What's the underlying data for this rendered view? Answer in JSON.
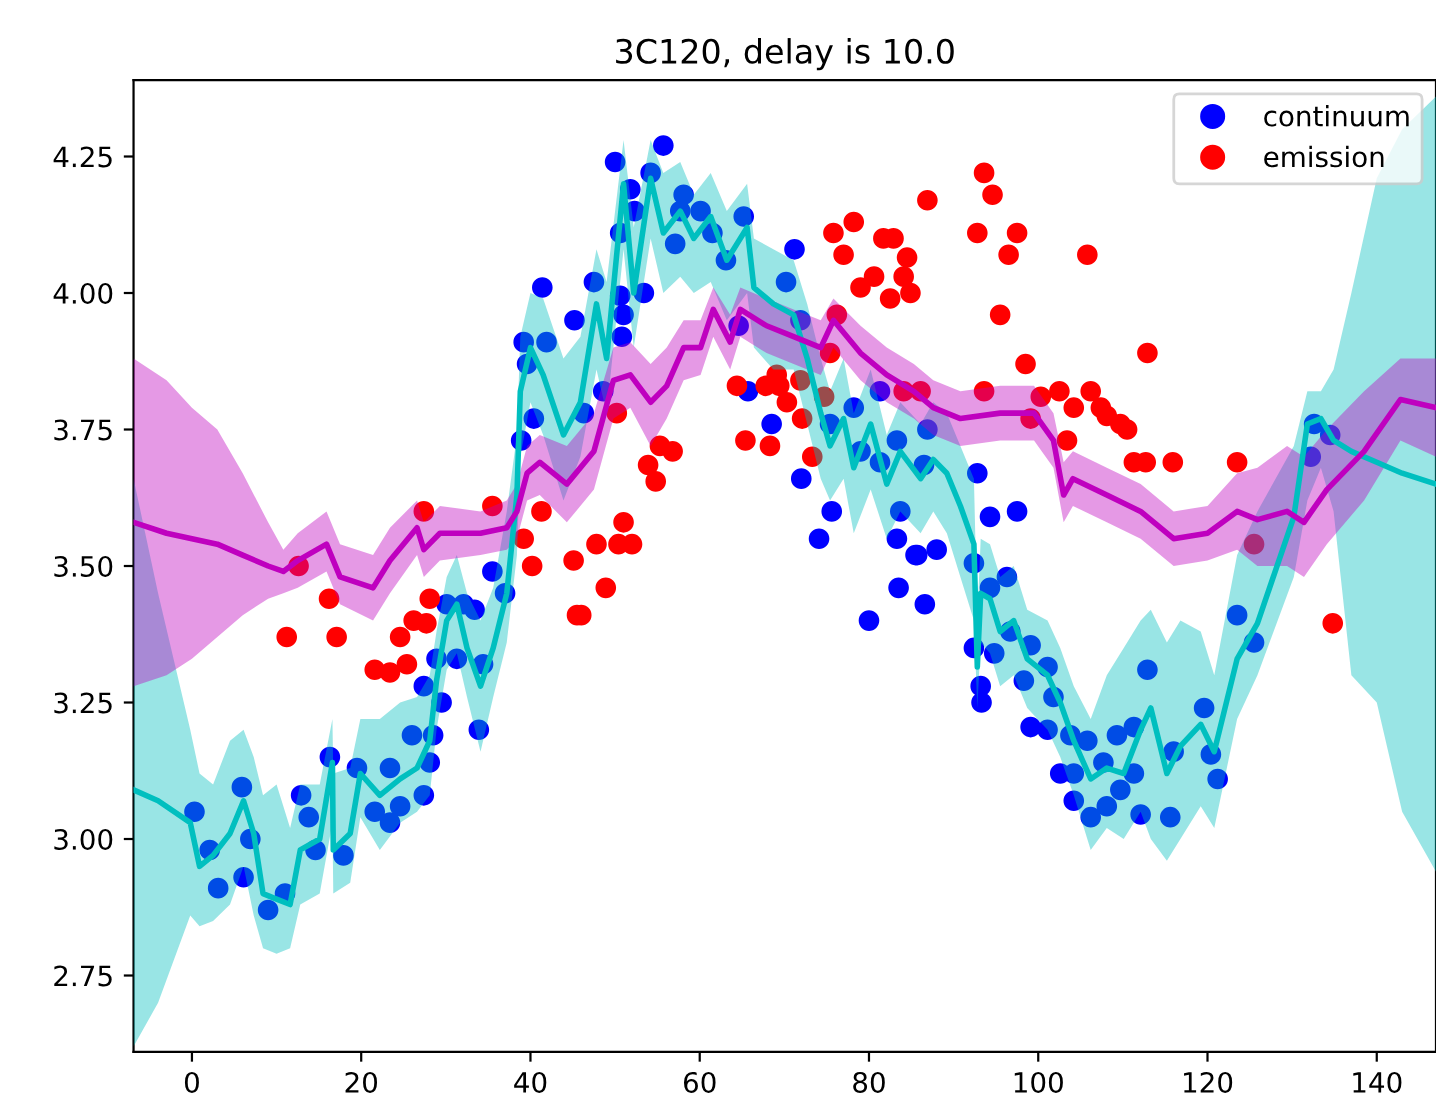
{
  "chart_data": {
    "type": "scatter",
    "title": "3C120, delay is 10.0",
    "xlim": [
      -6.9,
      147
    ],
    "ylim": [
      2.61,
      4.39
    ],
    "xticks": [
      0,
      20,
      40,
      60,
      80,
      100,
      120,
      140
    ],
    "yticks": [
      {
        "value": 2.75,
        "label": "2.75"
      },
      {
        "value": 3.0,
        "label": "3.00"
      },
      {
        "value": 3.25,
        "label": "3.25"
      },
      {
        "value": 3.5,
        "label": "3.50"
      },
      {
        "value": 3.75,
        "label": "3.75"
      },
      {
        "value": 4.0,
        "label": "4.00"
      },
      {
        "value": 4.25,
        "label": "4.25"
      }
    ],
    "legend": "top right",
    "grid": false,
    "series": [
      {
        "name": "continuum",
        "marker": "circle",
        "color": "#0000ff",
        "x": [
          0.3,
          2.1,
          3.1,
          5.9,
          6.9,
          6.1,
          9.0,
          11.0,
          12.9,
          13.8,
          14.6,
          16.3,
          17.9,
          19.5,
          21.6,
          23.4,
          23.4,
          24.6,
          26.0,
          27.4,
          28.1,
          28.5,
          29.5,
          27.4,
          28.9,
          31.3,
          30.1,
          32.1,
          33.4,
          34.4,
          33.9,
          35.5,
          37.0,
          39.2,
          39.6,
          41.9,
          41.4,
          38.9,
          40.4,
          45.2,
          46.3,
          47.5,
          48.6,
          50.6,
          51.0,
          50.8,
          50.0,
          51.8,
          54.2,
          55.7,
          50.6,
          53.4,
          52.3,
          57.7,
          58.1,
          60.1,
          61.5,
          57.1,
          63.1,
          65.2,
          71.2,
          70.2,
          71.9,
          64.6,
          65.7,
          68.5,
          72.0,
          74.1,
          75.6,
          80.0,
          83.5,
          86.6,
          78.2,
          75.4,
          79.0,
          81.3,
          81.3,
          83.7,
          85.5,
          86.9,
          83.3,
          86.5,
          92.8,
          94.3,
          97.5,
          83.3,
          85.7,
          88.0,
          92.4,
          96.3,
          92.4,
          94.8,
          112.9,
          132.6,
          134.5,
          132.2,
          123.5,
          125.5,
          94.3,
          93.2,
          93.3,
          99.1,
          98.3,
          101.1,
          101.8,
          96.7,
          99.1,
          101.1,
          103.8,
          105.8,
          102.6,
          104.2,
          104.2,
          106.2,
          108.1,
          107.7,
          109.7,
          111.3,
          109.3,
          111.3,
          112.1,
          115.6,
          116.0,
          119.6,
          120.4,
          121.2
        ],
        "values": [
          3.05,
          2.98,
          2.91,
          3.095,
          3.0,
          2.93,
          2.87,
          2.9,
          3.08,
          3.04,
          2.98,
          3.15,
          2.97,
          3.13,
          3.05,
          3.03,
          3.13,
          3.06,
          3.19,
          3.08,
          3.14,
          3.19,
          3.25,
          3.28,
          3.33,
          3.33,
          3.43,
          3.43,
          3.42,
          3.32,
          3.2,
          3.49,
          3.45,
          3.91,
          3.87,
          3.91,
          4.01,
          3.73,
          3.77,
          3.95,
          3.78,
          4.02,
          3.82,
          3.995,
          3.96,
          3.92,
          4.24,
          4.19,
          4.22,
          4.27,
          4.11,
          4.0,
          4.15,
          4.15,
          4.18,
          4.15,
          4.11,
          4.09,
          4.06,
          4.14,
          4.08,
          4.02,
          3.95,
          3.94,
          3.82,
          3.76,
          3.66,
          3.55,
          3.6,
          3.4,
          3.46,
          3.43,
          3.79,
          3.76,
          3.71,
          3.69,
          3.82,
          3.6,
          3.52,
          3.75,
          3.73,
          3.685,
          3.67,
          3.59,
          3.6,
          3.55,
          3.52,
          3.53,
          3.505,
          3.48,
          3.35,
          3.34,
          3.31,
          3.76,
          3.74,
          3.7,
          3.41,
          3.36,
          3.46,
          3.28,
          3.25,
          3.355,
          3.29,
          3.315,
          3.26,
          3.38,
          3.205,
          3.2,
          3.19,
          3.18,
          3.12,
          3.12,
          3.07,
          3.04,
          3.06,
          3.14,
          3.09,
          3.12,
          3.19,
          3.205,
          3.045,
          3.04,
          3.16,
          3.24,
          3.155,
          3.11
        ]
      },
      {
        "name": "emission",
        "marker": "circle",
        "color": "#ff0000",
        "x": [
          12.6,
          11.2,
          16.2,
          17.1,
          21.6,
          23.4,
          25.4,
          24.6,
          26.2,
          27.7,
          28.1,
          27.4,
          35.5,
          39.2,
          40.2,
          41.3,
          45.1,
          45.5,
          47.8,
          48.9,
          46.0,
          51.0,
          50.4,
          52.0,
          50.2,
          53.9,
          55.3,
          56.8,
          54.8,
          64.4,
          65.4,
          68.3,
          67.8,
          69.1,
          69.4,
          70.3,
          72.1,
          73.3,
          74.7,
          75.4,
          76.2,
          75.8,
          77.0,
          78.2,
          79.0,
          80.6,
          81.7,
          82.9,
          84.5,
          84.1,
          84.9,
          82.5,
          86.9,
          71.9,
          84.1,
          86.1,
          93.6,
          94.6,
          92.8,
          97.5,
          96.5,
          105.8,
          95.5,
          112.9,
          98.5,
          93.6,
          99.1,
          100.3,
          102.5,
          104.2,
          106.2,
          107.4,
          108.1,
          109.7,
          110.5,
          103.4,
          111.3,
          112.7,
          115.9,
          123.5,
          125.5,
          134.8
        ],
        "values": [
          3.5,
          3.37,
          3.44,
          3.37,
          3.31,
          3.305,
          3.32,
          3.37,
          3.4,
          3.395,
          3.44,
          3.6,
          3.61,
          3.55,
          3.5,
          3.6,
          3.51,
          3.41,
          3.54,
          3.46,
          3.41,
          3.58,
          3.54,
          3.54,
          3.78,
          3.685,
          3.72,
          3.71,
          3.655,
          3.83,
          3.73,
          3.72,
          3.83,
          3.85,
          3.83,
          3.8,
          3.77,
          3.7,
          3.81,
          3.89,
          3.96,
          4.11,
          4.07,
          4.13,
          4.01,
          4.03,
          4.1,
          4.1,
          4.065,
          4.03,
          4.0,
          3.99,
          4.17,
          3.84,
          3.82,
          3.82,
          4.22,
          4.18,
          4.11,
          4.11,
          4.07,
          4.07,
          3.96,
          3.89,
          3.87,
          3.82,
          3.77,
          3.81,
          3.82,
          3.79,
          3.82,
          3.79,
          3.775,
          3.76,
          3.75,
          3.73,
          3.69,
          3.69,
          3.69,
          3.69,
          3.54,
          3.395
        ]
      },
      {
        "type": "line",
        "marker": "none",
        "color": "#00bfbf",
        "x": [
          -6.9,
          -4,
          -0.2,
          0.9,
          2.5,
          4.5,
          6.1,
          7.3,
          8.4,
          10,
          11.6,
          12.8,
          15.1,
          16.6,
          16.7,
          18.7,
          19.9,
          22.2,
          24.6,
          26.6,
          28.1,
          28.9,
          30.1,
          31.3,
          32.5,
          34.1,
          35.6,
          37.2,
          38.4,
          38.8,
          40.0,
          41.5,
          43.9,
          45.9,
          47.8,
          49.0,
          51.0,
          52.2,
          54.2,
          55.7,
          57.7,
          59.3,
          61.3,
          63.2,
          65.6,
          66.4,
          68.7,
          71.1,
          72.7,
          74.3,
          75.4,
          77.0,
          78.2,
          80.2,
          82.1,
          83.7,
          86.1,
          87.6,
          89.2,
          90.8,
          92.4,
          92.8,
          93.2,
          94.3,
          95.5,
          97.1,
          98.7,
          101.1,
          102.6,
          104.2,
          106.2,
          108.1,
          110.1,
          112.1,
          113.3,
          115.2,
          116.8,
          119.2,
          120.8,
          123.5,
          125.9,
          130.2,
          131.8,
          133.4,
          134.9,
          137,
          140,
          143,
          147
        ],
        "values": [
          3.09,
          3.07,
          3.03,
          2.95,
          2.97,
          3.01,
          3.07,
          3.01,
          2.9,
          2.89,
          2.88,
          2.98,
          3.0,
          3.14,
          2.98,
          3.01,
          3.12,
          3.08,
          3.11,
          3.13,
          3.18,
          3.29,
          3.4,
          3.43,
          3.35,
          3.28,
          3.35,
          3.45,
          3.63,
          3.82,
          3.9,
          3.85,
          3.74,
          3.8,
          3.98,
          3.88,
          4.2,
          4.0,
          4.21,
          4.11,
          4.15,
          4.1,
          4.14,
          4.06,
          4.12,
          4.01,
          3.98,
          3.96,
          3.88,
          3.78,
          3.72,
          3.77,
          3.68,
          3.76,
          3.65,
          3.71,
          3.66,
          3.695,
          3.67,
          3.61,
          3.54,
          3.315,
          3.45,
          3.44,
          3.38,
          3.4,
          3.33,
          3.3,
          3.25,
          3.18,
          3.11,
          3.13,
          3.12,
          3.2,
          3.24,
          3.12,
          3.17,
          3.21,
          3.16,
          3.33,
          3.395,
          3.59,
          3.76,
          3.77,
          3.73,
          3.71,
          3.69,
          3.67,
          3.65
        ],
        "lower": [
          2.62,
          2.7,
          2.86,
          2.84,
          2.85,
          2.88,
          2.95,
          2.86,
          2.8,
          2.79,
          2.8,
          2.88,
          2.9,
          3.03,
          2.9,
          2.92,
          3.04,
          2.98,
          3.03,
          3.05,
          3.08,
          3.2,
          3.31,
          3.34,
          3.26,
          3.16,
          3.26,
          3.36,
          3.52,
          3.7,
          3.8,
          3.74,
          3.62,
          3.7,
          3.86,
          3.78,
          4.08,
          3.9,
          4.1,
          4.0,
          4.03,
          4.0,
          4.02,
          3.95,
          4.0,
          3.9,
          3.86,
          3.86,
          3.76,
          3.66,
          3.62,
          3.66,
          3.56,
          3.64,
          3.55,
          3.6,
          3.56,
          3.6,
          3.56,
          3.48,
          3.4,
          3.24,
          3.36,
          3.34,
          3.28,
          3.3,
          3.24,
          3.2,
          3.15,
          3.08,
          2.98,
          3.02,
          3.0,
          3.05,
          3.0,
          2.96,
          3.0,
          3.06,
          3.02,
          3.22,
          3.3,
          3.48,
          3.62,
          3.68,
          3.6,
          3.3,
          3.25,
          3.05,
          2.94
        ],
        "upper": [
          3.66,
          3.45,
          3.2,
          3.12,
          3.1,
          3.18,
          3.2,
          3.15,
          3.08,
          3.1,
          3.02,
          3.1,
          3.1,
          3.22,
          3.12,
          3.13,
          3.22,
          3.22,
          3.25,
          3.26,
          3.3,
          3.38,
          3.48,
          3.52,
          3.45,
          3.4,
          3.46,
          3.6,
          3.74,
          3.92,
          4.0,
          3.99,
          3.88,
          3.92,
          4.08,
          4.02,
          4.28,
          4.12,
          4.28,
          4.22,
          4.24,
          4.18,
          4.22,
          4.15,
          4.2,
          4.1,
          4.08,
          4.06,
          3.98,
          3.88,
          3.82,
          3.88,
          3.78,
          3.86,
          3.74,
          3.8,
          3.76,
          3.8,
          3.78,
          3.72,
          3.66,
          3.4,
          3.55,
          3.54,
          3.48,
          3.5,
          3.42,
          3.4,
          3.35,
          3.28,
          3.22,
          3.3,
          3.35,
          3.4,
          3.42,
          3.36,
          3.4,
          3.38,
          3.3,
          3.52,
          3.6,
          3.72,
          3.82,
          3.82,
          3.86,
          4.0,
          4.21,
          4.3,
          4.36
        ]
      },
      {
        "type": "line",
        "marker": "none",
        "color": "#bf00bf",
        "x": [
          -6.9,
          -3,
          0,
          3,
          6,
          9,
          10.8,
          12.5,
          15.9,
          17.5,
          21.4,
          23.4,
          26.6,
          27.4,
          29.3,
          34.1,
          37.2,
          38.4,
          39.6,
          41.1,
          44.3,
          47.5,
          49.8,
          51.8,
          54.2,
          56.1,
          58.1,
          60.1,
          61.6,
          63.6,
          64.8,
          67.9,
          71.1,
          74.3,
          75.8,
          79.0,
          82.1,
          85.3,
          87.6,
          90.8,
          95.5,
          99.5,
          101.8,
          103.0,
          104.1,
          108.1,
          112.1,
          116.0,
          120.0,
          123.5,
          125.9,
          129.4,
          131.4,
          134.1,
          138.5,
          142.8,
          147
        ],
        "values": [
          3.58,
          3.56,
          3.55,
          3.54,
          3.52,
          3.5,
          3.49,
          3.51,
          3.54,
          3.48,
          3.46,
          3.51,
          3.57,
          3.53,
          3.56,
          3.56,
          3.57,
          3.6,
          3.67,
          3.69,
          3.65,
          3.71,
          3.84,
          3.85,
          3.8,
          3.83,
          3.9,
          3.9,
          3.97,
          3.91,
          3.97,
          3.94,
          3.92,
          3.9,
          3.95,
          3.89,
          3.85,
          3.82,
          3.79,
          3.77,
          3.78,
          3.78,
          3.73,
          3.63,
          3.66,
          3.63,
          3.6,
          3.55,
          3.56,
          3.6,
          3.585,
          3.6,
          3.58,
          3.64,
          3.71,
          3.805,
          3.79
        ],
        "lower": [
          3.28,
          3.3,
          3.33,
          3.37,
          3.41,
          3.44,
          3.45,
          3.46,
          3.49,
          3.43,
          3.4,
          3.45,
          3.52,
          3.48,
          3.51,
          3.52,
          3.53,
          3.55,
          3.62,
          3.63,
          3.58,
          3.64,
          3.77,
          3.79,
          3.72,
          3.77,
          3.84,
          3.85,
          3.92,
          3.86,
          3.92,
          3.89,
          3.87,
          3.85,
          3.9,
          3.84,
          3.8,
          3.77,
          3.74,
          3.72,
          3.73,
          3.73,
          3.68,
          3.58,
          3.61,
          3.58,
          3.55,
          3.5,
          3.51,
          3.53,
          3.5,
          3.5,
          3.48,
          3.54,
          3.62,
          3.73,
          3.7
        ],
        "upper": [
          3.88,
          3.84,
          3.79,
          3.75,
          3.67,
          3.58,
          3.53,
          3.56,
          3.6,
          3.54,
          3.52,
          3.57,
          3.62,
          3.58,
          3.61,
          3.6,
          3.62,
          3.65,
          3.72,
          3.74,
          3.72,
          3.78,
          3.9,
          3.91,
          3.87,
          3.9,
          3.95,
          3.95,
          4.01,
          3.96,
          4.01,
          3.99,
          3.97,
          3.95,
          3.99,
          3.94,
          3.9,
          3.87,
          3.84,
          3.82,
          3.83,
          3.83,
          3.78,
          3.69,
          3.71,
          3.68,
          3.65,
          3.6,
          3.61,
          3.67,
          3.68,
          3.72,
          3.7,
          3.75,
          3.82,
          3.88,
          3.88
        ]
      }
    ]
  }
}
